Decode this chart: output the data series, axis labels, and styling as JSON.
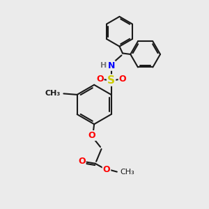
{
  "bg_color": "#ebebeb",
  "bond_color": "#1a1a1a",
  "bond_width": 1.5,
  "atom_colors": {
    "N": "#0000ff",
    "S": "#cccc00",
    "O": "#ff0000",
    "H": "#777777"
  },
  "fig_size": [
    3.0,
    3.0
  ],
  "dpi": 100
}
